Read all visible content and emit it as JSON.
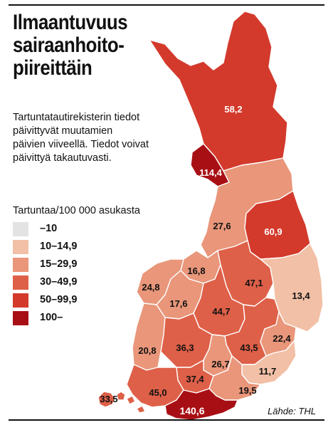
{
  "title_lines": [
    "Ilmaantuvuus",
    "sairaanhoito-",
    "piireittäin"
  ],
  "note_lines": [
    "Tartuntatautirekisterin tiedot",
    "päivittyvät muutamien",
    "päivien viiveellä. Tiedot voivat",
    "päivittyä takautuvasti."
  ],
  "legend": {
    "title": "Tartuntaa/100 000 asukasta",
    "items": [
      {
        "label": "–10",
        "color": "#e3e3e3"
      },
      {
        "label": "10–14,9",
        "color": "#f2c0a6"
      },
      {
        "label": "15–29,9",
        "color": "#e9967a"
      },
      {
        "label": "30–49,9",
        "color": "#de6048"
      },
      {
        "label": "50–99,9",
        "color": "#d33a2c"
      },
      {
        "label": "100–",
        "color": "#a80f15"
      }
    ]
  },
  "source": "Lähde: THL",
  "regions": [
    {
      "id": "lappi",
      "value": "58,2",
      "color": "#d33a2c"
    },
    {
      "id": "lansi-pohja",
      "value": "114,4",
      "color": "#a80f15"
    },
    {
      "id": "pohjois-pohjanmaa",
      "value": "27,6",
      "color": "#e9967a"
    },
    {
      "id": "kainuu",
      "value": "60,9",
      "color": "#d33a2c"
    },
    {
      "id": "keski-pohjanmaa",
      "value": "16,8",
      "color": "#e9967a"
    },
    {
      "id": "vaasa",
      "value": "24,8",
      "color": "#e9967a"
    },
    {
      "id": "etela-pohjanmaa",
      "value": "17,6",
      "color": "#e9967a"
    },
    {
      "id": "pohjois-savo",
      "value": "47,1",
      "color": "#de6048"
    },
    {
      "id": "pohjois-karjala",
      "value": "13,4",
      "color": "#f2c0a6"
    },
    {
      "id": "keski-suomi",
      "value": "44,7",
      "color": "#de6048"
    },
    {
      "id": "etela-savo",
      "value": "43,5",
      "color": "#de6048"
    },
    {
      "id": "ita-savo",
      "value": "22,4",
      "color": "#e9967a"
    },
    {
      "id": "satakunta",
      "value": "20,8",
      "color": "#e9967a"
    },
    {
      "id": "pirkanmaa",
      "value": "36,3",
      "color": "#de6048"
    },
    {
      "id": "paijat-hame",
      "value": "26,7",
      "color": "#e9967a"
    },
    {
      "id": "etela-karjala",
      "value": "11,7",
      "color": "#f2c0a6"
    },
    {
      "id": "kanta-hame",
      "value": "37,4",
      "color": "#de6048"
    },
    {
      "id": "kymenlaakso",
      "value": "19,5",
      "color": "#e9967a"
    },
    {
      "id": "varsinais-suomi",
      "value": "45,0",
      "color": "#de6048"
    },
    {
      "id": "ahvenanmaa",
      "value": "33,5",
      "color": "#de6048"
    },
    {
      "id": "hus",
      "value": "140,6",
      "color": "#a80f15"
    }
  ]
}
